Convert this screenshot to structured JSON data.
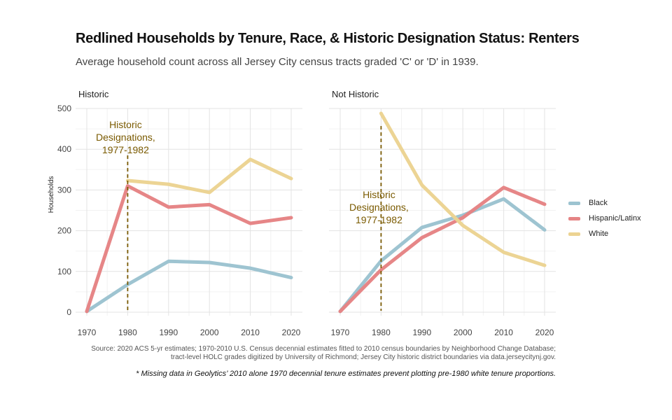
{
  "title": "Redlined Households by Tenure, Race, & Historic Designation Status: Renters",
  "subtitle": "Average household count across all Jersey City census tracts graded 'C' or 'D' in 1939.",
  "caption_line1": "Source: 2020 ACS 5-yr estimates; 1970-2010 U.S. Census decennial estimates fitted to 2010 census boundaries by Neighborhood Change Database;",
  "caption_line2": "tract-level HOLC grades digitized by University of Richmond; Jersey City historic district boundaries via data.jerseycitynj.gov.",
  "footnote": "* Missing data in Geolytics’ 2010  alone 1970 decennial tenure estimates prevent plotting pre-1980 white tenure proportions.",
  "chart_data": [
    {
      "type": "line",
      "panel_title": "Historic",
      "ylabel": "Households",
      "xlabel": "",
      "x": [
        1970,
        1980,
        1990,
        2000,
        2010,
        2020
      ],
      "ylim": [
        0,
        500
      ],
      "yticks": [
        0,
        100,
        200,
        300,
        400,
        500
      ],
      "grid": true,
      "series": [
        {
          "name": "Black",
          "color": "#9cc3d0",
          "x": [
            1970,
            1980,
            1990,
            2000,
            2010,
            2020
          ],
          "values": [
            2,
            68,
            125,
            122,
            108,
            85
          ]
        },
        {
          "name": "Hispanic/Latinx",
          "color": "#e58485",
          "x": [
            1970,
            1980,
            1990,
            2000,
            2010,
            2020
          ],
          "values": [
            2,
            310,
            258,
            264,
            218,
            232
          ]
        },
        {
          "name": "White",
          "color": "#ecd392",
          "x": [
            1980,
            1990,
            2000,
            2010,
            2020
          ],
          "values": [
            323,
            314,
            294,
            375,
            328
          ]
        }
      ],
      "annotation": {
        "text": [
          "Historic",
          "Designations,",
          "1977-1982"
        ],
        "x": 1980,
        "color": "#7a5a00"
      }
    },
    {
      "type": "line",
      "panel_title": "Not Historic",
      "xlabel": "",
      "x": [
        1970,
        1980,
        1990,
        2000,
        2010,
        2020
      ],
      "ylim": [
        0,
        500
      ],
      "grid": true,
      "series": [
        {
          "name": "Black",
          "color": "#9cc3d0",
          "x": [
            1970,
            1980,
            1990,
            2000,
            2010,
            2020
          ],
          "values": [
            2,
            126,
            208,
            238,
            278,
            202
          ]
        },
        {
          "name": "Hispanic/Latinx",
          "color": "#e58485",
          "x": [
            1970,
            1980,
            1990,
            2000,
            2010,
            2020
          ],
          "values": [
            2,
            104,
            183,
            232,
            306,
            265
          ]
        },
        {
          "name": "White",
          "color": "#ecd392",
          "x": [
            1980,
            1990,
            2000,
            2010,
            2020
          ],
          "values": [
            488,
            312,
            213,
            147,
            115
          ]
        }
      ],
      "annotation": {
        "text": [
          "Historic",
          "Designations,",
          "1977-1982"
        ],
        "x": 1980,
        "color": "#7a5a00"
      }
    }
  ],
  "legend": {
    "placement": "right",
    "items": [
      {
        "label": "Black",
        "color": "#9cc3d0"
      },
      {
        "label": "Hispanic/Latinx",
        "color": "#e58485"
      },
      {
        "label": "White",
        "color": "#ecd392"
      }
    ]
  }
}
